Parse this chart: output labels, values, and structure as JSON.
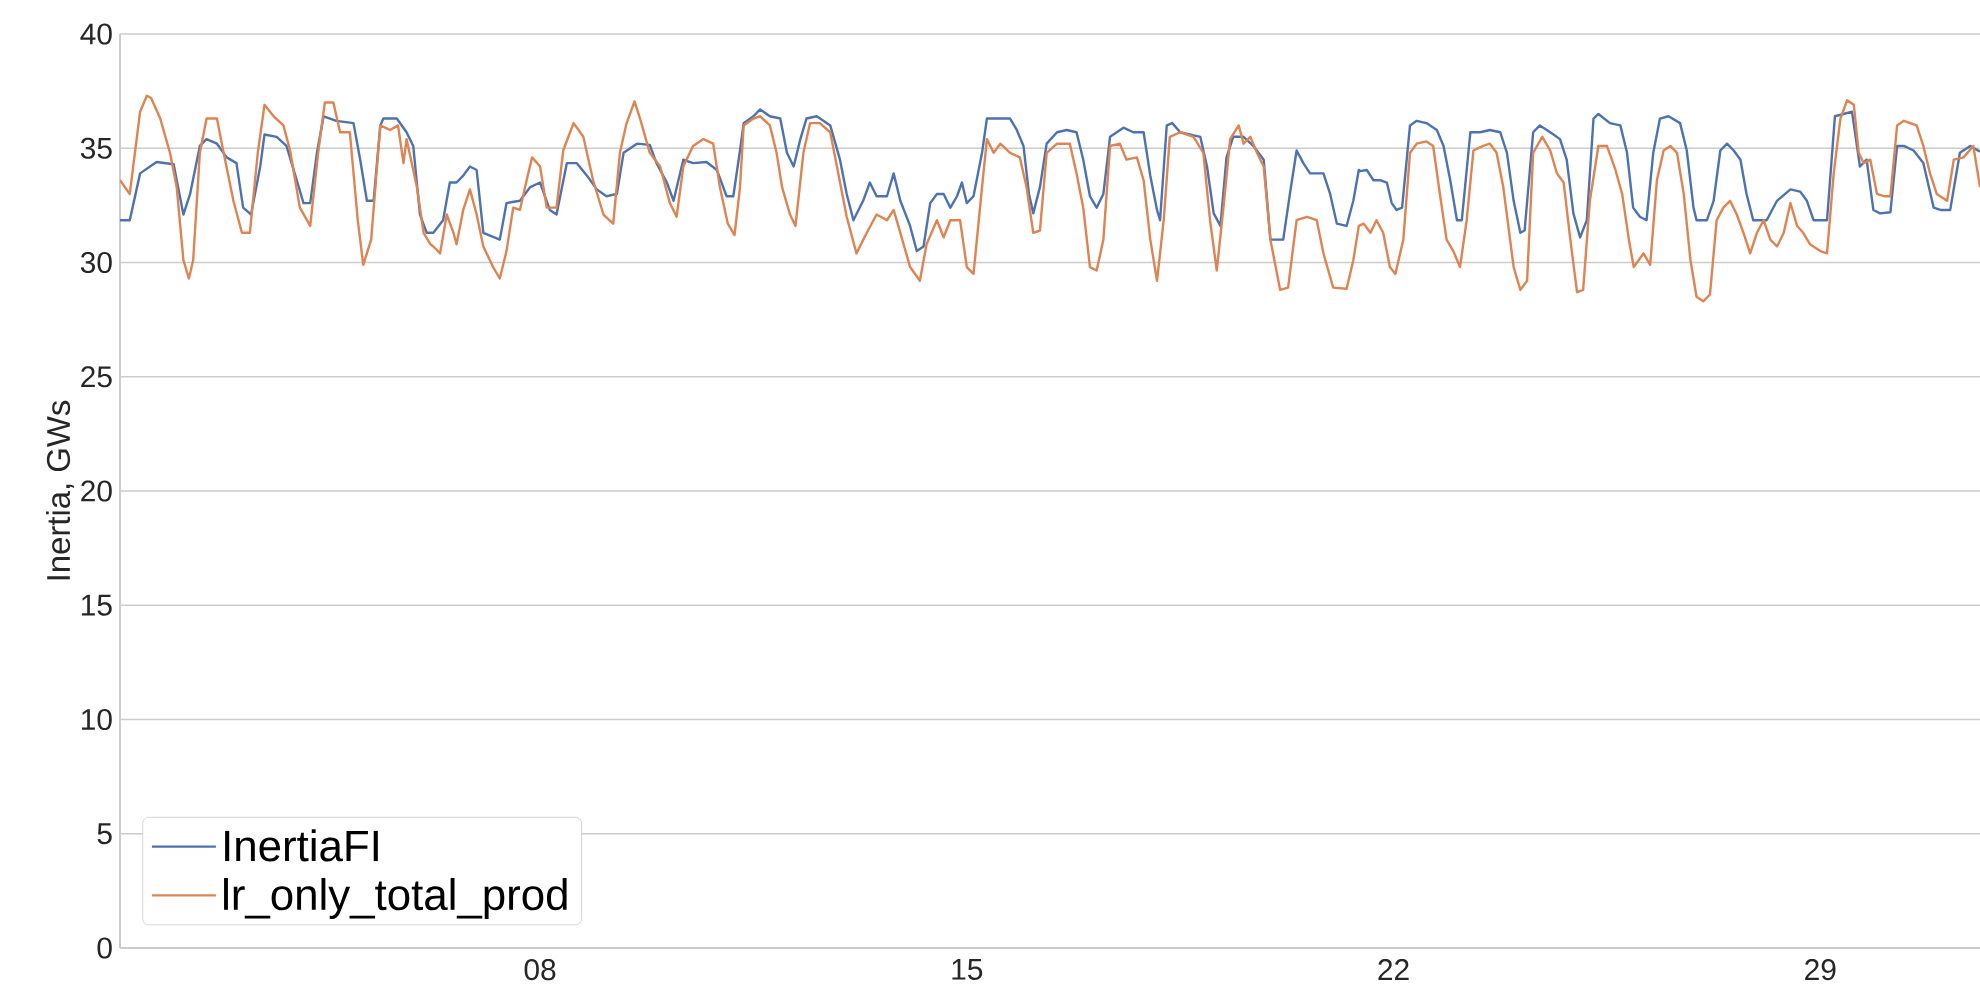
{
  "chart_data": {
    "type": "line",
    "ylabel": "Inertia, GWs",
    "xlim": [
      1.11,
      31.62
    ],
    "ylim": [
      0,
      40
    ],
    "xticks": [
      {
        "value": 8,
        "label": "08"
      },
      {
        "value": 15,
        "label": "15"
      },
      {
        "value": 22,
        "label": "22"
      },
      {
        "value": 29,
        "label": "29"
      }
    ],
    "yticks": [
      0,
      5,
      10,
      15,
      20,
      25,
      30,
      35,
      40
    ],
    "grid": "y",
    "legend": "bottom left",
    "marker": "none",
    "line_style": "solid",
    "series": [
      {
        "name": "InertiaFI",
        "color": "#4c72b0",
        "x": [
          1.11,
          1.27,
          1.44,
          1.71,
          1.99,
          2.15,
          2.26,
          2.42,
          2.53,
          2.7,
          2.86,
          3.02,
          3.13,
          3.26,
          3.41,
          3.48,
          3.68,
          3.84,
          4.01,
          4.12,
          4.23,
          4.34,
          4.45,
          4.66,
          4.94,
          5.05,
          5.16,
          5.27,
          5.38,
          5.43,
          5.65,
          5.81,
          5.92,
          6.03,
          6.14,
          6.25,
          6.41,
          6.52,
          6.63,
          6.74,
          6.85,
          6.96,
          7.07,
          7.34,
          7.45,
          7.67,
          7.84,
          8.0,
          8.16,
          8.27,
          8.44,
          8.6,
          8.77,
          8.93,
          9.09,
          9.26,
          9.37,
          9.59,
          9.8,
          9.91,
          10.08,
          10.19,
          10.35,
          10.51,
          10.73,
          10.9,
          11.06,
          11.17,
          11.28,
          11.34,
          11.5,
          11.61,
          11.77,
          11.94,
          12.05,
          12.16,
          12.27,
          12.37,
          12.54,
          12.76,
          12.92,
          13.03,
          13.14,
          13.3,
          13.41,
          13.52,
          13.69,
          13.8,
          13.91,
          14.07,
          14.18,
          14.29,
          14.4,
          14.51,
          14.62,
          14.73,
          14.84,
          14.92,
          15.0,
          15.11,
          15.25,
          15.33,
          15.49,
          15.71,
          15.82,
          15.93,
          16.02,
          16.09,
          16.2,
          16.31,
          16.48,
          16.64,
          16.8,
          16.91,
          17.02,
          17.13,
          17.24,
          17.35,
          17.57,
          17.73,
          17.9,
          18.01,
          18.12,
          18.17,
          18.28,
          18.37,
          18.5,
          18.83,
          18.94,
          19.05,
          19.16,
          19.26,
          19.37,
          19.54,
          19.7,
          19.87,
          19.98,
          20.19,
          20.3,
          20.41,
          20.52,
          20.63,
          20.85,
          20.96,
          21.07,
          21.23,
          21.34,
          21.43,
          21.45,
          21.56,
          21.67,
          21.78,
          21.89,
          21.97,
          22.05,
          22.14,
          22.27,
          22.38,
          22.54,
          22.71,
          22.82,
          22.93,
          23.04,
          23.12,
          23.26,
          23.42,
          23.58,
          23.75,
          23.86,
          23.97,
          24.08,
          24.15,
          24.29,
          24.4,
          24.57,
          24.73,
          24.84,
          24.95,
          25.06,
          25.17,
          25.28,
          25.36,
          25.55,
          25.72,
          25.83,
          25.93,
          26.04,
          26.15,
          26.26,
          26.37,
          26.51,
          26.7,
          26.81,
          26.92,
          26.97,
          27.14,
          27.25,
          27.36,
          27.47,
          27.58,
          27.69,
          27.79,
          27.9,
          28.12,
          28.29,
          28.51,
          28.67,
          28.78,
          28.89,
          29.11,
          29.24,
          29.38,
          29.52,
          29.65,
          29.76,
          29.87,
          29.98,
          30.15,
          30.26,
          30.37,
          30.53,
          30.69,
          30.86,
          30.97,
          31.13,
          31.29,
          31.46,
          31.62
        ],
        "values": [
          31.85,
          31.85,
          33.9,
          34.4,
          34.3,
          32.1,
          33.0,
          35.1,
          35.4,
          35.2,
          34.6,
          34.35,
          32.4,
          32.1,
          34.2,
          35.6,
          35.5,
          35.1,
          33.6,
          32.6,
          32.6,
          34.8,
          36.4,
          36.2,
          36.1,
          34.5,
          32.7,
          32.7,
          36.0,
          36.3,
          36.3,
          35.7,
          35.1,
          32.1,
          31.3,
          31.3,
          31.85,
          33.5,
          33.5,
          33.8,
          34.2,
          34.05,
          31.3,
          31.0,
          32.6,
          32.7,
          33.3,
          33.5,
          32.3,
          32.1,
          34.35,
          34.35,
          33.8,
          33.2,
          32.9,
          33.0,
          34.8,
          35.2,
          35.15,
          34.35,
          33.5,
          32.7,
          34.5,
          34.35,
          34.4,
          34.05,
          32.9,
          32.9,
          34.9,
          36.1,
          36.4,
          36.7,
          36.4,
          36.3,
          34.8,
          34.2,
          35.4,
          36.3,
          36.4,
          36.0,
          34.5,
          33.0,
          31.85,
          32.7,
          33.5,
          32.9,
          32.9,
          33.9,
          32.7,
          31.6,
          30.5,
          30.7,
          32.6,
          33.0,
          33.0,
          32.4,
          32.9,
          33.5,
          32.6,
          32.9,
          34.8,
          36.3,
          36.3,
          36.3,
          35.8,
          35.1,
          33.0,
          32.15,
          33.3,
          35.2,
          35.7,
          35.8,
          35.7,
          34.5,
          32.9,
          32.4,
          33.0,
          35.5,
          35.9,
          35.7,
          35.7,
          33.8,
          32.3,
          31.85,
          36.0,
          36.1,
          35.7,
          35.5,
          34.2,
          32.15,
          31.6,
          34.6,
          35.5,
          35.5,
          35.1,
          34.5,
          31.0,
          31.0,
          33.0,
          34.9,
          34.35,
          33.9,
          33.9,
          33.0,
          31.7,
          31.6,
          32.7,
          34.05,
          34.0,
          34.05,
          33.6,
          33.6,
          33.5,
          32.6,
          32.3,
          32.4,
          36.0,
          36.2,
          36.1,
          35.8,
          35.1,
          33.6,
          31.85,
          31.85,
          35.7,
          35.7,
          35.8,
          35.7,
          34.8,
          32.7,
          31.3,
          31.4,
          35.7,
          36.0,
          35.7,
          35.4,
          34.5,
          32.15,
          31.1,
          31.85,
          36.3,
          36.5,
          36.1,
          36.0,
          34.8,
          32.4,
          32.0,
          31.85,
          34.8,
          36.3,
          36.4,
          36.1,
          34.9,
          32.4,
          31.85,
          31.85,
          32.7,
          34.9,
          35.2,
          34.9,
          34.5,
          33.0,
          31.85,
          31.85,
          32.7,
          33.2,
          33.1,
          32.7,
          31.85,
          31.85,
          36.4,
          36.5,
          36.6,
          34.2,
          34.5,
          32.3,
          32.15,
          32.2,
          35.1,
          35.1,
          34.9,
          34.35,
          32.4,
          32.3,
          32.3,
          34.8,
          35.1,
          34.85
        ]
      },
      {
        "name": "lr_only_total_prod",
        "color": "#dd8452",
        "x": [
          1.11,
          1.27,
          1.44,
          1.55,
          1.62,
          1.77,
          1.93,
          2.04,
          2.15,
          2.24,
          2.31,
          2.42,
          2.53,
          2.7,
          2.81,
          2.97,
          3.11,
          3.24,
          3.37,
          3.48,
          3.63,
          3.79,
          3.9,
          4.06,
          4.23,
          4.36,
          4.47,
          4.61,
          4.72,
          4.88,
          5.01,
          5.1,
          5.23,
          5.38,
          5.54,
          5.67,
          5.76,
          5.81,
          5.98,
          6.09,
          6.2,
          6.25,
          6.36,
          6.47,
          6.58,
          6.63,
          6.74,
          6.85,
          6.96,
          7.07,
          7.23,
          7.34,
          7.45,
          7.56,
          7.67,
          7.78,
          7.87,
          8.0,
          8.11,
          8.27,
          8.38,
          8.55,
          8.71,
          8.87,
          9.04,
          9.2,
          9.31,
          9.42,
          9.55,
          9.64,
          9.8,
          9.97,
          10.13,
          10.24,
          10.35,
          10.51,
          10.68,
          10.84,
          10.95,
          11.08,
          11.19,
          11.28,
          11.34,
          11.5,
          11.61,
          11.77,
          11.88,
          11.97,
          12.1,
          12.19,
          12.32,
          12.43,
          12.59,
          12.76,
          12.87,
          13.03,
          13.19,
          13.36,
          13.52,
          13.69,
          13.8,
          13.91,
          14.07,
          14.23,
          14.34,
          14.51,
          14.62,
          14.73,
          14.89,
          15.0,
          15.11,
          15.25,
          15.33,
          15.44,
          15.55,
          15.71,
          15.87,
          15.98,
          16.09,
          16.2,
          16.31,
          16.48,
          16.69,
          16.8,
          16.91,
          17.02,
          17.13,
          17.24,
          17.35,
          17.51,
          17.62,
          17.79,
          17.9,
          18.01,
          18.12,
          18.23,
          18.33,
          18.5,
          18.72,
          18.88,
          18.99,
          19.1,
          19.21,
          19.32,
          19.46,
          19.54,
          19.65,
          19.76,
          19.87,
          19.98,
          20.14,
          20.27,
          20.41,
          20.58,
          20.74,
          20.85,
          21.01,
          21.23,
          21.34,
          21.43,
          21.51,
          21.62,
          21.72,
          21.83,
          21.94,
          22.03,
          22.16,
          22.27,
          22.38,
          22.54,
          22.65,
          22.76,
          22.87,
          22.98,
          23.09,
          23.2,
          23.31,
          23.47,
          23.58,
          23.69,
          23.8,
          23.97,
          24.08,
          24.19,
          24.29,
          24.44,
          24.57,
          24.68,
          24.79,
          24.9,
          25.01,
          25.11,
          25.22,
          25.36,
          25.5,
          25.64,
          25.75,
          25.86,
          25.94,
          26.1,
          26.21,
          26.32,
          26.43,
          26.54,
          26.65,
          26.76,
          26.87,
          26.97,
          27.08,
          27.19,
          27.3,
          27.41,
          27.52,
          27.63,
          27.74,
          27.85,
          27.96,
          28.07,
          28.18,
          28.29,
          28.4,
          28.51,
          28.62,
          28.72,
          28.83,
          29.0,
          29.11,
          29.22,
          29.33,
          29.44,
          29.55,
          29.63,
          29.71,
          29.82,
          29.93,
          30.04,
          30.15,
          30.26,
          30.37,
          30.58,
          30.69,
          30.8,
          30.91,
          31.08,
          31.19,
          31.35,
          31.51,
          31.62
        ],
        "values": [
          33.6,
          33.0,
          36.6,
          37.3,
          37.2,
          36.3,
          34.8,
          33.3,
          30.1,
          29.3,
          30.1,
          34.8,
          36.3,
          36.3,
          34.8,
          32.7,
          31.3,
          31.3,
          34.8,
          36.9,
          36.4,
          36.0,
          34.9,
          32.4,
          31.6,
          34.8,
          37.0,
          37.0,
          35.7,
          35.7,
          31.85,
          29.9,
          31.0,
          36.0,
          35.8,
          36.0,
          34.35,
          35.4,
          33.3,
          31.3,
          30.8,
          30.7,
          30.4,
          32.1,
          31.3,
          30.8,
          32.3,
          33.2,
          32.1,
          30.7,
          29.8,
          29.3,
          30.5,
          32.4,
          32.3,
          33.6,
          34.6,
          34.2,
          32.4,
          32.4,
          34.9,
          36.1,
          35.5,
          33.6,
          32.1,
          31.7,
          34.8,
          36.1,
          37.05,
          36.3,
          34.8,
          34.2,
          32.6,
          32.0,
          34.2,
          35.1,
          35.4,
          35.2,
          33.3,
          31.7,
          31.2,
          33.3,
          36.0,
          36.3,
          36.4,
          36.0,
          34.8,
          33.3,
          32.1,
          31.6,
          34.8,
          36.1,
          36.1,
          35.7,
          34.2,
          32.0,
          30.4,
          31.3,
          32.1,
          31.85,
          32.3,
          31.3,
          29.8,
          29.2,
          30.8,
          31.85,
          31.1,
          31.85,
          31.85,
          29.8,
          29.5,
          33.3,
          35.4,
          34.8,
          35.2,
          34.8,
          34.6,
          33.3,
          31.3,
          31.4,
          34.8,
          35.2,
          35.2,
          33.9,
          32.4,
          29.8,
          29.65,
          31.0,
          35.1,
          35.2,
          34.5,
          34.6,
          33.6,
          31.0,
          29.2,
          31.85,
          35.5,
          35.7,
          35.5,
          34.8,
          31.85,
          29.65,
          32.4,
          35.4,
          36.0,
          35.2,
          35.5,
          34.8,
          34.2,
          31.0,
          28.8,
          28.9,
          31.85,
          32.0,
          31.85,
          30.4,
          28.9,
          28.85,
          30.1,
          31.6,
          31.7,
          31.3,
          31.85,
          31.3,
          29.8,
          29.5,
          31.0,
          34.8,
          35.2,
          35.3,
          35.1,
          33.0,
          31.0,
          30.5,
          29.8,
          31.85,
          34.9,
          35.1,
          35.2,
          34.8,
          33.3,
          29.8,
          28.8,
          29.2,
          34.8,
          35.5,
          34.9,
          33.9,
          33.5,
          31.0,
          28.7,
          28.8,
          32.7,
          35.1,
          35.1,
          34.05,
          33.0,
          31.0,
          29.8,
          30.4,
          29.9,
          33.6,
          34.9,
          35.1,
          34.8,
          33.0,
          30.1,
          28.5,
          28.3,
          28.6,
          31.85,
          32.4,
          32.7,
          32.1,
          31.3,
          30.4,
          31.3,
          31.85,
          31.0,
          30.7,
          31.3,
          32.6,
          31.6,
          31.3,
          30.8,
          30.5,
          30.4,
          33.9,
          36.3,
          37.1,
          36.9,
          34.8,
          34.35,
          34.5,
          33.0,
          32.9,
          32.9,
          36.0,
          36.2,
          36.0,
          35.1,
          33.9,
          33.0,
          32.7,
          34.5,
          34.6,
          35.1,
          33.3
        ]
      }
    ]
  }
}
